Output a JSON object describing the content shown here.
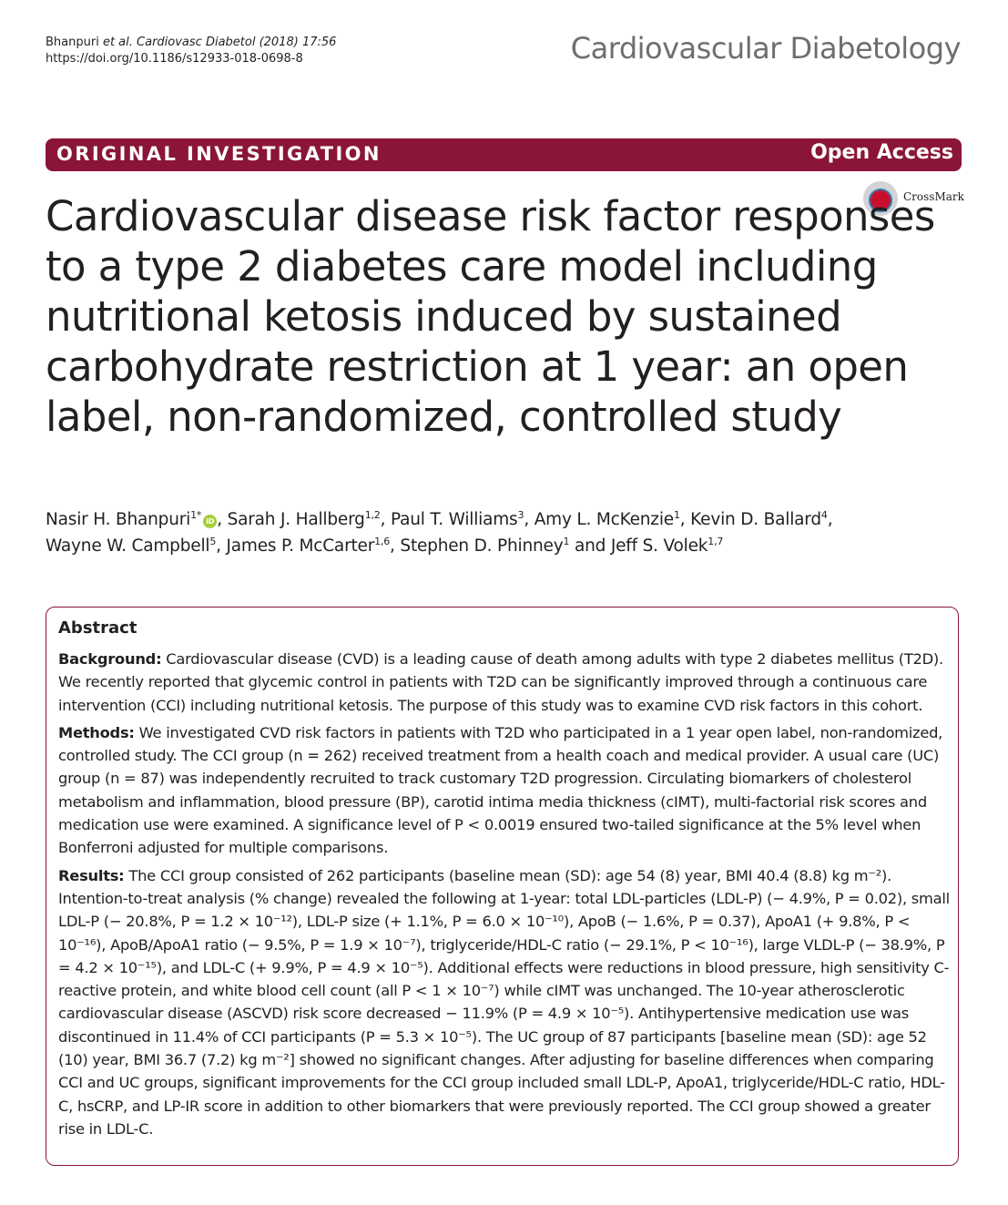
{
  "header": {
    "citation_author": "Bhanpuri ",
    "citation_etal": "et al. Cardiovasc Diabetol",
    "citation_rest": "  (2018) 17:56",
    "doi": "https://doi.org/10.1186/s12933-018-0698-8",
    "journal": "Cardiovascular Diabetology"
  },
  "banner": {
    "type": "ORIGINAL INVESTIGATION",
    "access": "Open Access"
  },
  "crossmark": {
    "label": "CrossMark",
    "icon": "crossmark-icon"
  },
  "title": "Cardiovascular disease risk factor responses to a type 2 diabetes care model including nutritional ketosis induced by sustained carbohydrate restriction at 1 year: an open label, non-randomized, controlled study",
  "authors": [
    {
      "name": "Nasir H. Bhanpuri",
      "aff": "1*",
      "orcid": true
    },
    {
      "name": "Sarah J. Hallberg",
      "aff": "1,2"
    },
    {
      "name": "Paul T. Williams",
      "aff": "3"
    },
    {
      "name": "Amy L. McKenzie",
      "aff": "1"
    },
    {
      "name": "Kevin D. Ballard",
      "aff": "4"
    },
    {
      "name": "Wayne W. Campbell",
      "aff": "5"
    },
    {
      "name": "James P. McCarter",
      "aff": "1,6"
    },
    {
      "name": "Stephen D. Phinney",
      "aff": "1"
    },
    {
      "name": "Jeff S. Volek",
      "aff": "1,7"
    }
  ],
  "abstract": {
    "heading": "Abstract",
    "background_label": "Background:",
    "background_text": "Cardiovascular disease (CVD) is a leading cause of death among adults with type 2 diabetes mellitus (T2D). We recently reported that glycemic control in patients with T2D can be significantly improved through a continuous care intervention (CCI) including nutritional ketosis. The purpose of this study was to examine CVD risk factors in this cohort.",
    "methods_label": "Methods:",
    "methods_text": "We investigated CVD risk factors in patients with T2D who participated in a 1 year open label, non-randomized, controlled study. The CCI group (n = 262) received treatment from a health coach and medical provider. A usual care (UC) group (n = 87) was independently recruited to track customary T2D progression. Circulating biomarkers of cholesterol metabolism and inflammation, blood pressure (BP), carotid intima media thickness (cIMT), multi-factorial risk scores and medication use were examined. A significance level of P < 0.0019 ensured two-tailed significance at the 5% level when Bonferroni adjusted for multiple comparisons.",
    "results_label": "Results:",
    "results_text": "The CCI group consisted of 262 participants (baseline mean (SD): age 54 (8) year, BMI 40.4 (8.8) kg m⁻²). Intention-to-treat analysis (% change) revealed the following at 1-year: total LDL-particles (LDL-P) (− 4.9%, P = 0.02), small LDL-P (− 20.8%, P = 1.2 × 10⁻¹²), LDL-P size (+ 1.1%, P = 6.0 × 10⁻¹⁰), ApoB (− 1.6%, P = 0.37), ApoA1 (+ 9.8%, P < 10⁻¹⁶), ApoB/ApoA1 ratio (− 9.5%, P = 1.9 × 10⁻⁷), triglyceride/HDL-C ratio (− 29.1%, P < 10⁻¹⁶), large VLDL-P (− 38.9%, P = 4.2 × 10⁻¹⁵), and LDL-C (+ 9.9%, P = 4.9 × 10⁻⁵). Additional effects were reductions in blood pressure, high sensitivity C-reactive protein, and white blood cell count (all P < 1 × 10⁻⁷) while cIMT was unchanged. The 10-year atherosclerotic cardiovascular disease (ASCVD) risk score decreased − 11.9% (P = 4.9 × 10⁻⁵). Antihypertensive medication use was discontinued in 11.4% of CCI participants (P = 5.3 × 10⁻⁵). The UC group of 87 participants [baseline mean (SD): age 52 (10) year, BMI 36.7 (7.2) kg m⁻²] showed no significant changes. After adjusting for baseline differences when comparing CCI and UC groups, significant improvements for the CCI group included small LDL-P, ApoA1, triglyceride/HDL-C ratio, HDL-C, hsCRP, and LP-IR score in addition to other biomarkers that were previously reported. The CCI group showed a greater rise in LDL-C."
  },
  "colors": {
    "brand": "#8a1538",
    "journal_gray": "#6d6e71",
    "orcid_green": "#a6ce39"
  }
}
